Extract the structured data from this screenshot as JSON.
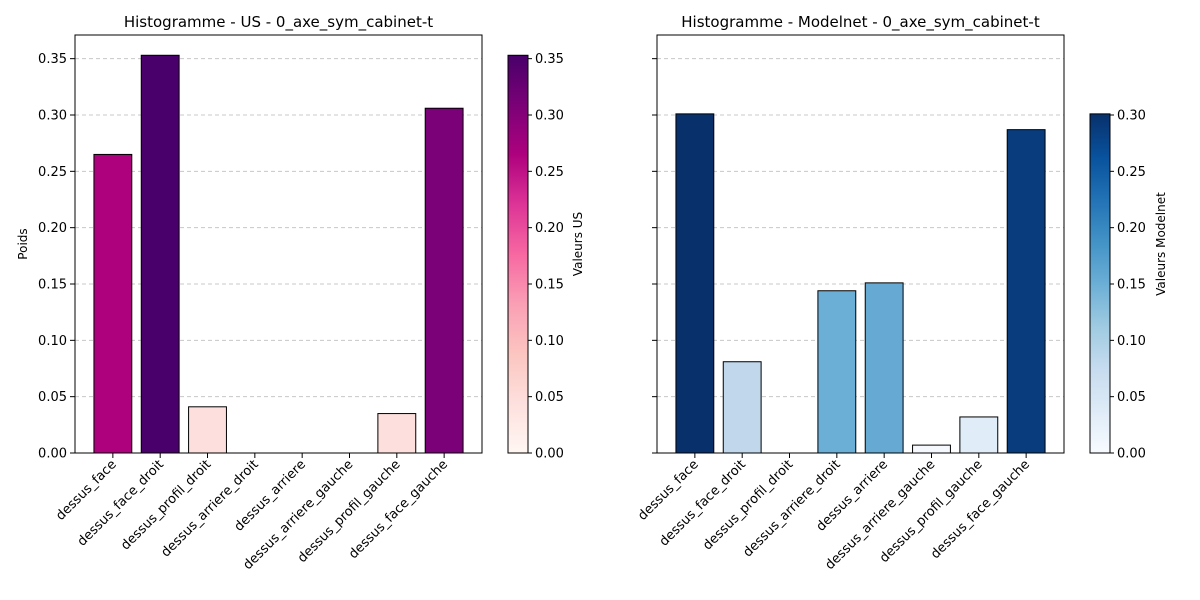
{
  "chart_data": [
    {
      "type": "bar",
      "title": "Histogramme - US - 0_axe_sym_cabinet-t",
      "xlabel": "",
      "ylabel": "Poids",
      "categories": [
        "dessus_face",
        "dessus_face_droit",
        "dessus_profil_droit",
        "dessus_arriere_droit",
        "dessus_arriere",
        "dessus_arriere_gauche",
        "dessus_profil_gauche",
        "dessus_face_gauche"
      ],
      "values": [
        0.265,
        0.353,
        0.041,
        0.0,
        0.0,
        0.0,
        0.035,
        0.306
      ],
      "bar_colors": [
        "#ae017e",
        "#49006a",
        "#fde0dd",
        "#fff7f3",
        "#fff7f3",
        "#fff7f3",
        "#fde0dd",
        "#7a0177"
      ],
      "ylim": [
        0,
        0.371
      ],
      "yticks": [
        "0.00",
        "0.05",
        "0.10",
        "0.15",
        "0.20",
        "0.25",
        "0.30",
        "0.35"
      ],
      "grid": "y",
      "colorbar": {
        "label": "Valeurs US",
        "colormap": "RdPu",
        "stops": [
          "#fff7f3",
          "#fde0dd",
          "#fcc5c0",
          "#fa9fb5",
          "#f768a1",
          "#dd3497",
          "#ae017e",
          "#7a0177",
          "#49006a"
        ],
        "range": [
          0,
          0.353
        ],
        "ticks": [
          "0.00",
          "0.05",
          "0.10",
          "0.15",
          "0.20",
          "0.25",
          "0.30",
          "0.35"
        ]
      }
    },
    {
      "type": "bar",
      "title": "Histogramme - Modelnet - 0_axe_sym_cabinet-t",
      "xlabel": "",
      "ylabel": "",
      "categories": [
        "dessus_face",
        "dessus_face_droit",
        "dessus_profil_droit",
        "dessus_arriere_droit",
        "dessus_arriere",
        "dessus_arriere_gauche",
        "dessus_profil_gauche",
        "dessus_face_gauche"
      ],
      "values": [
        0.301,
        0.081,
        0.0,
        0.144,
        0.151,
        0.007,
        0.032,
        0.287
      ],
      "bar_colors": [
        "#08306b",
        "#c0d7ec",
        "#f7fbff",
        "#6baed6",
        "#66aad4",
        "#f5f9fe",
        "#e0ecf8",
        "#083c7d"
      ],
      "ylim": [
        0,
        0.371
      ],
      "yticks": [
        "0.00",
        "0.05",
        "0.10",
        "0.15",
        "0.20",
        "0.25",
        "0.30",
        "0.35"
      ],
      "grid": "y",
      "colorbar": {
        "label": "Valeurs Modelnet",
        "colormap": "Blues",
        "stops": [
          "#f7fbff",
          "#deebf7",
          "#c6dbef",
          "#9ecae1",
          "#6baed6",
          "#4292c6",
          "#2171b5",
          "#08519c",
          "#08306b"
        ],
        "range": [
          0,
          0.301
        ],
        "ticks": [
          "0.00",
          "0.05",
          "0.10",
          "0.15",
          "0.20",
          "0.25",
          "0.30"
        ]
      }
    }
  ]
}
